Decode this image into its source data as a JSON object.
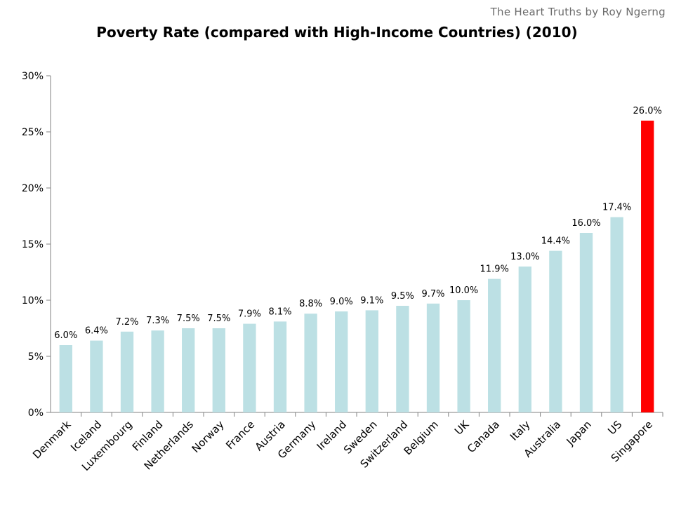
{
  "header": {
    "credit": "The Heart Truths by Roy Ngerng"
  },
  "chart_data": {
    "type": "bar",
    "title": "Poverty Rate (compared with High-Income Countries) (2010)",
    "xlabel": "",
    "ylabel": "",
    "ylim": [
      0,
      30
    ],
    "yticks": [
      0,
      5,
      10,
      15,
      20,
      25,
      30
    ],
    "ytick_labels": [
      "0%",
      "5%",
      "10%",
      "15%",
      "20%",
      "25%",
      "30%"
    ],
    "grid": false,
    "categories": [
      "Denmark",
      "Iceland",
      "Luxembourg",
      "Finland",
      "Netherlands",
      "Norway",
      "France",
      "Austria",
      "Germany",
      "Ireland",
      "Sweden",
      "Switzerland",
      "Belgium",
      "UK",
      "Canada",
      "Italy",
      "Australia",
      "Japan",
      "US",
      "Singapore"
    ],
    "values": [
      6.0,
      6.4,
      7.2,
      7.3,
      7.5,
      7.5,
      7.9,
      8.1,
      8.8,
      9.0,
      9.1,
      9.5,
      9.7,
      10.0,
      11.9,
      13.0,
      14.4,
      16.0,
      17.4,
      26.0
    ],
    "value_labels": [
      "6.0%",
      "6.4%",
      "7.2%",
      "7.3%",
      "7.5%",
      "7.5%",
      "7.9%",
      "8.1%",
      "8.8%",
      "9.0%",
      "9.1%",
      "9.5%",
      "9.7%",
      "10.0%",
      "11.9%",
      "13.0%",
      "14.4%",
      "16.0%",
      "17.4%",
      "26.0%"
    ],
    "colors": {
      "default": "#bce0e4",
      "highlight": "#ff0000",
      "axis": "#808080"
    },
    "highlight_category": "Singapore"
  }
}
